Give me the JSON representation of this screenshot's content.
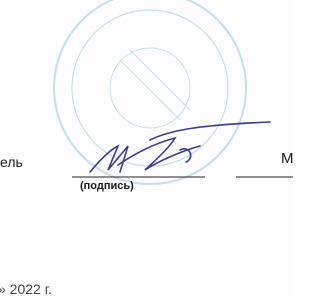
{
  "signature_block": {
    "role_fragment": "ель",
    "signature_caption": "(подпись)",
    "name_fragment": "М",
    "date_fragment": "» 2022 г."
  }
}
